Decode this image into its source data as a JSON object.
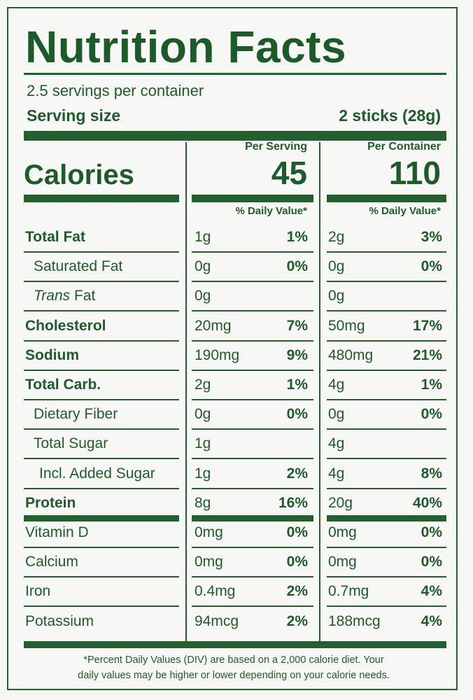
{
  "title": "Nutrition Facts",
  "servings_per_container": "2.5 servings per container",
  "serving_size_label": "Serving size",
  "serving_size_value": "2 sticks (28g)",
  "calories_label": "Calories",
  "per_serving_label": "Per Serving",
  "per_container_label": "Per Container",
  "calories_serving": "45",
  "calories_container": "110",
  "dv_label_serving": "% Daily Value*",
  "dv_label_container": "% Daily Value*",
  "rows": [
    {
      "name": "Total Fat",
      "bold": true,
      "indent": 0,
      "s_amt": "1g",
      "s_pct": "1%",
      "c_amt": "2g",
      "c_pct": "3%"
    },
    {
      "name": "Saturated Fat",
      "bold": false,
      "indent": 1,
      "s_amt": "0g",
      "s_pct": "0%",
      "c_amt": "0g",
      "c_pct": "0%"
    },
    {
      "name_italic": "Trans",
      "name": " Fat",
      "bold": false,
      "indent": 1,
      "s_amt": "0g",
      "s_pct": "",
      "c_amt": "0g",
      "c_pct": ""
    },
    {
      "name": "Cholesterol",
      "bold": true,
      "indent": 0,
      "s_amt": "20mg",
      "s_pct": "7%",
      "c_amt": "50mg",
      "c_pct": "17%"
    },
    {
      "name": "Sodium",
      "bold": true,
      "indent": 0,
      "s_amt": "190mg",
      "s_pct": "9%",
      "c_amt": "480mg",
      "c_pct": "21%"
    },
    {
      "name": "Total Carb.",
      "bold": true,
      "indent": 0,
      "s_amt": "2g",
      "s_pct": "1%",
      "c_amt": "4g",
      "c_pct": "1%"
    },
    {
      "name": "Dietary Fiber",
      "bold": false,
      "indent": 1,
      "s_amt": "0g",
      "s_pct": "0%",
      "c_amt": "0g",
      "c_pct": "0%"
    },
    {
      "name": "Total Sugar",
      "bold": false,
      "indent": 1,
      "s_amt": "1g",
      "s_pct": "",
      "c_amt": "4g",
      "c_pct": ""
    },
    {
      "name": "Incl. Added Sugar",
      "bold": false,
      "indent": 2,
      "s_amt": "1g",
      "s_pct": "2%",
      "c_amt": "4g",
      "c_pct": "8%"
    },
    {
      "name": "Protein",
      "bold": true,
      "indent": 0,
      "s_amt": "8g",
      "s_pct": "16%",
      "c_amt": "20g",
      "c_pct": "40%"
    },
    {
      "name": "Vitamin D",
      "bold": false,
      "indent": 0,
      "s_amt": "0mg",
      "s_pct": "0%",
      "c_amt": "0mg",
      "c_pct": "0%"
    },
    {
      "name": "Calcium",
      "bold": false,
      "indent": 0,
      "s_amt": "0mg",
      "s_pct": "0%",
      "c_amt": "0mg",
      "c_pct": "0%"
    },
    {
      "name": "Iron",
      "bold": false,
      "indent": 0,
      "s_amt": "0.4mg",
      "s_pct": "2%",
      "c_amt": "0.7mg",
      "c_pct": "4%"
    },
    {
      "name": "Potassium",
      "bold": false,
      "indent": 0,
      "s_amt": "94mcg",
      "s_pct": "2%",
      "c_amt": "188mcg",
      "c_pct": "4%"
    }
  ],
  "footnote_line1": "*Percent Daily Values (DIV) are based on a 2,000 calorie diet. Your",
  "footnote_line2": "daily values may be higher or lower depending on your calorie needs."
}
